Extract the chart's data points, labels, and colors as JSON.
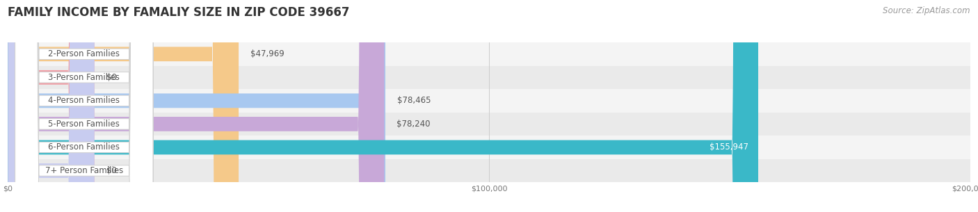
{
  "title": "FAMILY INCOME BY FAMALIY SIZE IN ZIP CODE 39667",
  "source": "Source: ZipAtlas.com",
  "categories": [
    "2-Person Families",
    "3-Person Families",
    "4-Person Families",
    "5-Person Families",
    "6-Person Families",
    "7+ Person Families"
  ],
  "values": [
    47969,
    0,
    78465,
    78240,
    155947,
    0
  ],
  "bar_colors": [
    "#f5c98a",
    "#f0a0a8",
    "#a8c8f0",
    "#c8a8d8",
    "#3ab8c8",
    "#c8ccf0"
  ],
  "label_colors": [
    "#555555",
    "#555555",
    "#555555",
    "#555555",
    "#ffffff",
    "#555555"
  ],
  "row_bg_even": "#f4f4f4",
  "row_bg_odd": "#eaeaea",
  "xlim_max": 200000,
  "xticks": [
    0,
    100000,
    200000
  ],
  "xtick_labels": [
    "$0",
    "$100,000",
    "$200,000"
  ],
  "background_color": "#ffffff",
  "title_fontsize": 12,
  "value_fontsize": 8.5,
  "source_fontsize": 8.5,
  "category_fontsize": 8.5,
  "bar_height": 0.62,
  "zero_bar_width": 18000
}
